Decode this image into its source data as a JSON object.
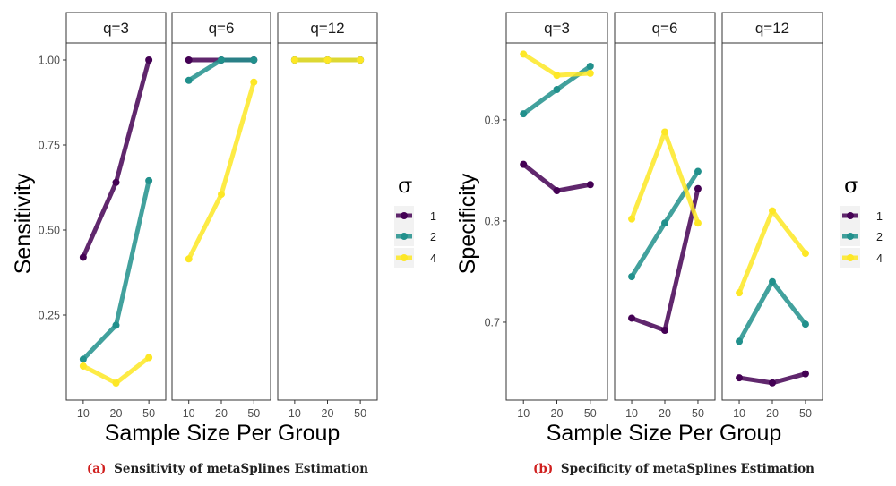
{
  "colors": {
    "sigma_1": "#440154",
    "sigma_2": "#21908C",
    "sigma_4": "#FDE725",
    "strip_bg": "#ffffff",
    "axis": "#333333"
  },
  "legend": {
    "title": "σ",
    "entries": [
      "1",
      "2",
      "4"
    ]
  },
  "captions": {
    "a_tag": "(a)",
    "a_text": "Sensitivity of metaSplines Estimation",
    "b_tag": "(b)",
    "b_text": "Specificity of metaSplines Estimation"
  },
  "chart_data": [
    {
      "type": "line",
      "ylabel": "Sensitivity",
      "xlabel": "Sample Size Per Group",
      "x_categories": [
        "10",
        "20",
        "50"
      ],
      "ylim": [
        0.0,
        1.05
      ],
      "yticks": [
        0.25,
        0.5,
        0.75,
        1.0
      ],
      "ytick_labels": [
        "0.25",
        "0.50",
        "0.75",
        "1.00"
      ],
      "facets": [
        {
          "label": "q=3",
          "series": [
            {
              "sigma": "1",
              "values": [
                0.42,
                0.64,
                1.0
              ]
            },
            {
              "sigma": "2",
              "values": [
                0.12,
                0.22,
                0.645
              ]
            },
            {
              "sigma": "4",
              "values": [
                0.1,
                0.05,
                0.125
              ]
            }
          ]
        },
        {
          "label": "q=6",
          "series": [
            {
              "sigma": "1",
              "values": [
                1.0,
                1.0,
                1.0
              ]
            },
            {
              "sigma": "2",
              "values": [
                0.94,
                1.0,
                1.0
              ]
            },
            {
              "sigma": "4",
              "values": [
                0.415,
                0.605,
                0.935
              ]
            }
          ]
        },
        {
          "label": "q=12",
          "series": [
            {
              "sigma": "1",
              "values": [
                1.0,
                1.0,
                1.0
              ]
            },
            {
              "sigma": "2",
              "values": [
                1.0,
                1.0,
                1.0
              ]
            },
            {
              "sigma": "4",
              "values": [
                1.0,
                1.0,
                1.0
              ]
            }
          ]
        }
      ]
    },
    {
      "type": "line",
      "ylabel": "Specificity",
      "xlabel": "Sample Size Per Group",
      "x_categories": [
        "10",
        "20",
        "50"
      ],
      "ylim": [
        0.623,
        0.976
      ],
      "yticks": [
        0.7,
        0.8,
        0.9
      ],
      "ytick_labels": [
        "0.7",
        "0.8",
        "0.9"
      ],
      "facets": [
        {
          "label": "q=3",
          "series": [
            {
              "sigma": "1",
              "values": [
                0.856,
                0.83,
                0.836
              ]
            },
            {
              "sigma": "2",
              "values": [
                0.906,
                0.93,
                0.953
              ]
            },
            {
              "sigma": "4",
              "values": [
                0.965,
                0.944,
                0.946
              ]
            }
          ]
        },
        {
          "label": "q=6",
          "series": [
            {
              "sigma": "1",
              "values": [
                0.704,
                0.692,
                0.832
              ]
            },
            {
              "sigma": "2",
              "values": [
                0.745,
                0.798,
                0.849
              ]
            },
            {
              "sigma": "4",
              "values": [
                0.802,
                0.888,
                0.798
              ]
            }
          ]
        },
        {
          "label": "q=12",
          "series": [
            {
              "sigma": "1",
              "values": [
                0.645,
                0.64,
                0.649
              ]
            },
            {
              "sigma": "2",
              "values": [
                0.681,
                0.74,
                0.698
              ]
            },
            {
              "sigma": "4",
              "values": [
                0.729,
                0.81,
                0.768
              ]
            }
          ]
        }
      ]
    }
  ]
}
